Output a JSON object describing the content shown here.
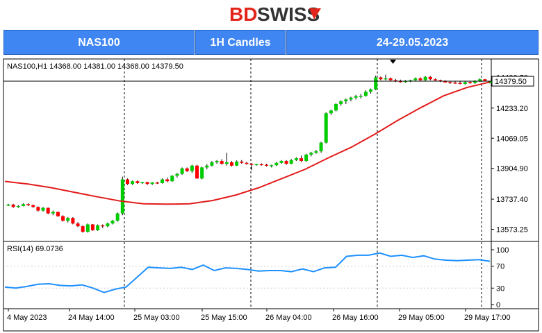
{
  "brand": {
    "text": "BDSWISS",
    "part1": "BD",
    "part2": "SWISS"
  },
  "header": {
    "symbol": "NAS100",
    "timeframe": "1H Candles",
    "dates": "24-29.05.2023"
  },
  "colors": {
    "up": "#00cc00",
    "down": "#ff0000",
    "ma": "#e31b1b",
    "rsi": "#1e90ff",
    "header_bg": "#3f86f2",
    "brand": "#e3241b"
  },
  "chart_data": [
    {
      "type": "candlestick",
      "title": "NAS100,H1  14368.00 14381.00 14368.00 14379.50",
      "price_labels": [
        "14400.70",
        "14233.20",
        "14069.05",
        "13904.90",
        "13737.40",
        "13573.25"
      ],
      "last_price_label": "14379.50",
      "time_labels": [
        "4 May 2023",
        "24 May 14:00",
        "25 May 03:00",
        "25 May 15:00",
        "26 May 04:00",
        "26 May 16:00",
        "29 May 05:00",
        "29 May 17:00"
      ],
      "ylim": [
        13530,
        14425
      ],
      "candles": [
        [
          13705,
          13712,
          13700,
          13708
        ],
        [
          13708,
          13712,
          13690,
          13695
        ],
        [
          13695,
          13705,
          13690,
          13700
        ],
        [
          13700,
          13715,
          13698,
          13710
        ],
        [
          13710,
          13715,
          13700,
          13705
        ],
        [
          13705,
          13708,
          13690,
          13695
        ],
        [
          13695,
          13698,
          13670,
          13675
        ],
        [
          13675,
          13695,
          13670,
          13690
        ],
        [
          13690,
          13692,
          13655,
          13660
        ],
        [
          13660,
          13675,
          13650,
          13668
        ],
        [
          13668,
          13670,
          13640,
          13645
        ],
        [
          13645,
          13650,
          13615,
          13620
        ],
        [
          13620,
          13640,
          13610,
          13635
        ],
        [
          13635,
          13640,
          13600,
          13605
        ],
        [
          13605,
          13612,
          13585,
          13590
        ],
        [
          13590,
          13595,
          13555,
          13560
        ],
        [
          13560,
          13605,
          13555,
          13600
        ],
        [
          13600,
          13602,
          13565,
          13568
        ],
        [
          13568,
          13600,
          13565,
          13595
        ],
        [
          13595,
          13600,
          13580,
          13590
        ],
        [
          13590,
          13610,
          13585,
          13605
        ],
        [
          13605,
          13625,
          13600,
          13620
        ],
        [
          13620,
          13665,
          13615,
          13660
        ],
        [
          13660,
          13860,
          13650,
          13845
        ],
        [
          13845,
          13850,
          13815,
          13820
        ],
        [
          13820,
          13838,
          13815,
          13835
        ],
        [
          13835,
          13840,
          13820,
          13825
        ],
        [
          13825,
          13832,
          13820,
          13830
        ],
        [
          13830,
          13832,
          13815,
          13820
        ],
        [
          13820,
          13830,
          13815,
          13828
        ],
        [
          13828,
          13832,
          13820,
          13825
        ],
        [
          13825,
          13850,
          13822,
          13845
        ],
        [
          13845,
          13855,
          13830,
          13835
        ],
        [
          13835,
          13868,
          13832,
          13865
        ],
        [
          13865,
          13880,
          13855,
          13875
        ],
        [
          13875,
          13910,
          13870,
          13905
        ],
        [
          13905,
          13910,
          13885,
          13890
        ],
        [
          13890,
          13925,
          13880,
          13920
        ],
        [
          13920,
          13925,
          13848,
          13850
        ],
        [
          13850,
          13915,
          13845,
          13910
        ],
        [
          13910,
          13928,
          13900,
          13920
        ],
        [
          13920,
          13945,
          13915,
          13938
        ],
        [
          13938,
          13950,
          13930,
          13945
        ],
        [
          13945,
          13955,
          13925,
          13930
        ],
        [
          13930,
          13990,
          13920,
          13938
        ],
        [
          13938,
          13945,
          13915,
          13920
        ],
        [
          13920,
          13948,
          13918,
          13942
        ],
        [
          13942,
          13950,
          13930,
          13935
        ],
        [
          13935,
          13940,
          13925,
          13930
        ],
        [
          13930,
          13932,
          13895,
          13925
        ],
        [
          13925,
          13930,
          13920,
          13928
        ],
        [
          13928,
          13932,
          13920,
          13925
        ],
        [
          13925,
          13930,
          13915,
          13920
        ],
        [
          13920,
          13925,
          13910,
          13922
        ],
        [
          13922,
          13940,
          13918,
          13935
        ],
        [
          13935,
          13950,
          13930,
          13945
        ],
        [
          13945,
          13950,
          13925,
          13930
        ],
        [
          13930,
          13955,
          13928,
          13950
        ],
        [
          13950,
          13965,
          13945,
          13960
        ],
        [
          13960,
          13975,
          13940,
          13945
        ],
        [
          13945,
          13985,
          13940,
          13980
        ],
        [
          13980,
          13995,
          13970,
          13990
        ],
        [
          13990,
          14005,
          13985,
          13998
        ],
        [
          13998,
          14050,
          13990,
          14045
        ],
        [
          14045,
          14210,
          14040,
          14205
        ],
        [
          14205,
          14225,
          14195,
          14220
        ],
        [
          14220,
          14260,
          14215,
          14255
        ],
        [
          14255,
          14275,
          14245,
          14270
        ],
        [
          14270,
          14285,
          14255,
          14280
        ],
        [
          14280,
          14295,
          14270,
          14290
        ],
        [
          14290,
          14305,
          14280,
          14298
        ],
        [
          14298,
          14310,
          14285,
          14300
        ],
        [
          14300,
          14330,
          14295,
          14322
        ],
        [
          14322,
          14340,
          14312,
          14335
        ],
        [
          14335,
          14410,
          14330,
          14400
        ],
        [
          14400,
          14405,
          14385,
          14390
        ],
        [
          14390,
          14415,
          14385,
          14395
        ],
        [
          14395,
          14400,
          14380,
          14385
        ],
        [
          14385,
          14392,
          14375,
          14380
        ],
        [
          14380,
          14388,
          14372,
          14378
        ],
        [
          14378,
          14385,
          14372,
          14380
        ],
        [
          14380,
          14388,
          14374,
          14385
        ],
        [
          14385,
          14400,
          14380,
          14395
        ],
        [
          14395,
          14400,
          14380,
          14385
        ],
        [
          14385,
          14408,
          14380,
          14403
        ],
        [
          14403,
          14408,
          14385,
          14390
        ],
        [
          14390,
          14395,
          14382,
          14385
        ],
        [
          14385,
          14388,
          14375,
          14378
        ],
        [
          14378,
          14385,
          14372,
          14375
        ],
        [
          14375,
          14380,
          14365,
          14372
        ],
        [
          14372,
          14380,
          14365,
          14370
        ],
        [
          14370,
          14378,
          14362,
          14365
        ],
        [
          14365,
          14378,
          14360,
          14375
        ],
        [
          14375,
          14380,
          14365,
          14370
        ],
        [
          14370,
          14385,
          14365,
          14380
        ],
        [
          14380,
          14395,
          14375,
          14390
        ],
        [
          14390,
          14392,
          14378,
          14380
        ],
        [
          14368,
          14381,
          14368,
          14379.5
        ]
      ],
      "ma": [
        13834,
        13820,
        13800,
        13775,
        13750,
        13727,
        13712,
        13710,
        13712,
        13730,
        13760,
        13800,
        13850,
        13900,
        13962,
        14020,
        14090,
        14165,
        14235,
        14300,
        14345,
        14375
      ],
      "rsi_label": "RSI(14) 69.0736",
      "rsi_levels": [
        "100",
        "70",
        "30",
        "0"
      ],
      "rsi": [
        32,
        30,
        33,
        37,
        38,
        35,
        34,
        36,
        30,
        22,
        28,
        32,
        50,
        68,
        67,
        66,
        68,
        64,
        72,
        62,
        67,
        66,
        64,
        61,
        62,
        62,
        60,
        65,
        60,
        67,
        68,
        88,
        90,
        90,
        94,
        88,
        90,
        86,
        89,
        83,
        81,
        80,
        81,
        82,
        79
      ]
    }
  ]
}
